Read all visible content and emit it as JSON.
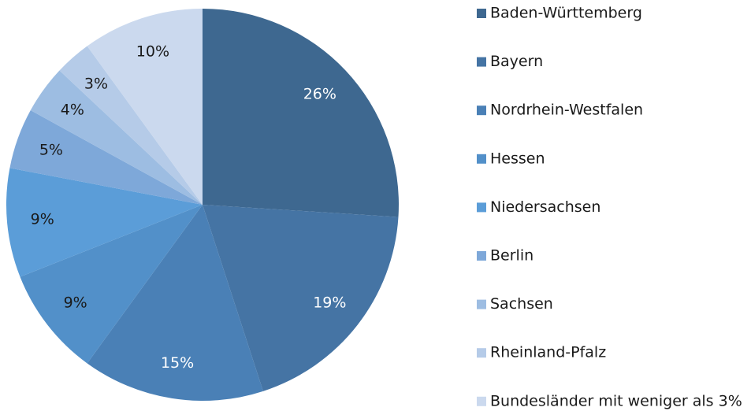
{
  "chart_data": {
    "type": "pie",
    "categories": [
      "Baden-Württemberg",
      "Bayern",
      "Nordrhein-Westfalen",
      "Hessen",
      "Niedersachsen",
      "Berlin",
      "Sachsen",
      "Rheinland-Pfalz",
      "Bundesländer mit weniger als 3%"
    ],
    "values": [
      26,
      19,
      15,
      9,
      9,
      5,
      4,
      3,
      10
    ],
    "value_labels": [
      "26%",
      "19%",
      "15%",
      "9%",
      "9%",
      "5%",
      "4%",
      "3%",
      "10%"
    ],
    "colors": [
      "#3e6890",
      "#4574a4",
      "#4a80b6",
      "#5290c9",
      "#5b9dd8",
      "#7ea8d9",
      "#9dbde2",
      "#b5cbe8",
      "#cbd9ee"
    ],
    "label_colors": [
      "#ffffff",
      "#ffffff",
      "#ffffff",
      "#1a1a1a",
      "#1a1a1a",
      "#1a1a1a",
      "#1a1a1a",
      "#1a1a1a",
      "#1a1a1a"
    ],
    "legend": "right"
  }
}
